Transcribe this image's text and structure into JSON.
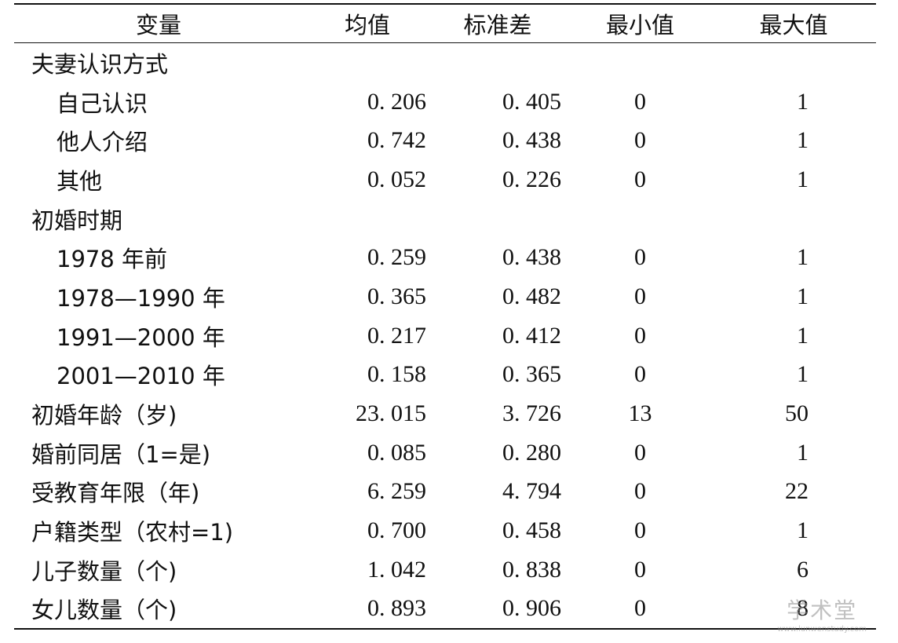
{
  "table": {
    "headers": [
      "变量",
      "均值",
      "标准差",
      "最小值",
      "最大值"
    ],
    "rows": [
      {
        "label": "夫妻认识方式",
        "level": "group",
        "mean": "",
        "sd": "",
        "min": "",
        "max": ""
      },
      {
        "label": "自己认识",
        "level": "sub",
        "mean": "0. 206",
        "sd": "0. 405",
        "min": "0",
        "max": "1"
      },
      {
        "label": "他人介绍",
        "level": "sub",
        "mean": "0. 742",
        "sd": "0. 438",
        "min": "0",
        "max": "1"
      },
      {
        "label": "其他",
        "level": "sub",
        "mean": "0. 052",
        "sd": "0. 226",
        "min": "0",
        "max": "1"
      },
      {
        "label": "初婚时期",
        "level": "group",
        "mean": "",
        "sd": "",
        "min": "",
        "max": ""
      },
      {
        "label": "1978 年前",
        "level": "sub",
        "mean": "0. 259",
        "sd": "0. 438",
        "min": "0",
        "max": "1"
      },
      {
        "label": "1978—1990 年",
        "level": "sub",
        "mean": "0. 365",
        "sd": "0. 482",
        "min": "0",
        "max": "1"
      },
      {
        "label": "1991—2000 年",
        "level": "sub",
        "mean": "0. 217",
        "sd": "0. 412",
        "min": "0",
        "max": "1"
      },
      {
        "label": "2001—2010 年",
        "level": "sub",
        "mean": "0. 158",
        "sd": "0. 365",
        "min": "0",
        "max": "1"
      },
      {
        "label": "初婚年龄（岁)",
        "level": "top",
        "mean": "23. 015",
        "sd": "3. 726",
        "min": "13",
        "max": "50"
      },
      {
        "label": "婚前同居（1=是)",
        "level": "top",
        "mean": "0. 085",
        "sd": "0. 280",
        "min": "0",
        "max": "1"
      },
      {
        "label": "受教育年限（年)",
        "level": "top",
        "mean": "6. 259",
        "sd": "4. 794",
        "min": "0",
        "max": "22"
      },
      {
        "label": "户籍类型（农村=1)",
        "level": "top",
        "mean": "0. 700",
        "sd": "0. 458",
        "min": "0",
        "max": "1"
      },
      {
        "label": "儿子数量（个)",
        "level": "top",
        "mean": "1. 042",
        "sd": "0. 838",
        "min": "0",
        "max": "6"
      },
      {
        "label": "女儿数量（个)",
        "level": "top",
        "mean": "0. 893",
        "sd": "0. 906",
        "min": "0",
        "max": "8"
      }
    ]
  },
  "watermark": {
    "main": "学术堂",
    "sub": "www.lunwenstudy.com"
  }
}
